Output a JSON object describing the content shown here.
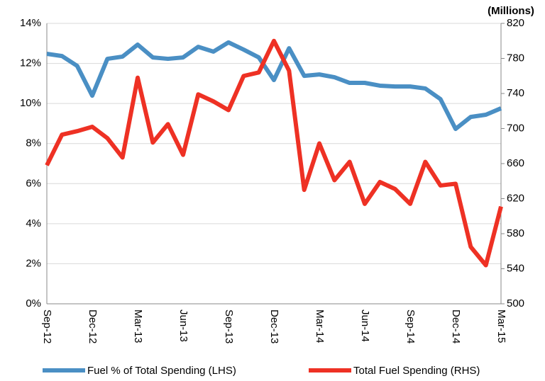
{
  "chart_data": {
    "type": "line",
    "categories": [
      "Sep-12",
      null,
      null,
      "Dec-12",
      null,
      null,
      "Mar-13",
      null,
      null,
      "Jun-13",
      null,
      null,
      "Sep-13",
      null,
      null,
      "Dec-13",
      null,
      null,
      "Mar-14",
      null,
      null,
      "Jun-14",
      null,
      null,
      "Sep-14",
      null,
      null,
      "Dec-14",
      null,
      null,
      "Mar-15"
    ],
    "series": [
      {
        "name": "Fuel % of Total Spending (LHS)",
        "color": "#4a8fc4",
        "values": [
          12.48,
          12.37,
          11.88,
          10.39,
          12.23,
          12.34,
          12.94,
          12.3,
          12.23,
          12.3,
          12.83,
          12.59,
          13.05,
          12.69,
          12.3,
          11.17,
          12.76,
          11.38,
          11.45,
          11.31,
          11.03,
          11.03,
          10.89,
          10.85,
          10.85,
          10.75,
          10.22,
          8.73,
          9.33,
          9.44,
          9.76
        ]
      },
      {
        "name": "Total Fuel Spending (RHS)",
        "color": "#ee3124",
        "axis": "y2",
        "values": [
          658,
          693,
          697,
          702,
          689,
          667,
          758,
          684,
          705,
          670,
          739,
          731,
          721,
          760,
          764,
          800,
          766,
          630,
          683,
          641,
          662,
          614,
          639,
          631,
          614,
          662,
          635,
          637,
          565,
          544,
          611
        ]
      }
    ],
    "ylim": [
      0,
      14
    ],
    "yticks": [
      {
        "value": 0,
        "label": "0%"
      },
      {
        "value": 2,
        "label": "2%"
      },
      {
        "value": 4,
        "label": "4%"
      },
      {
        "value": 6,
        "label": "6%"
      },
      {
        "value": 8,
        "label": "8%"
      },
      {
        "value": 10,
        "label": "10%"
      },
      {
        "value": 12,
        "label": "12%"
      },
      {
        "value": 14,
        "label": "14%"
      }
    ],
    "y2lim": [
      500,
      820
    ],
    "y2ticks": [
      500,
      540,
      580,
      620,
      660,
      700,
      740,
      780,
      820
    ],
    "y2_label": "(Millions)",
    "grid": true,
    "legend": "bottom"
  }
}
